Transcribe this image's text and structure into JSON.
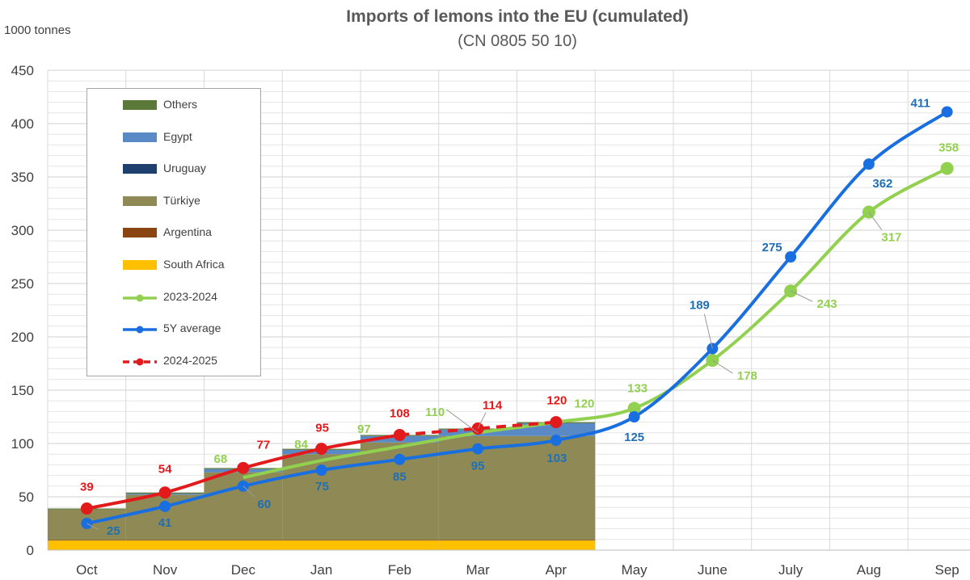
{
  "title": "Imports of lemons into the EU (cumulated)",
  "subtitle": "(CN 0805 50 10)",
  "unit_label": "1000 tonnes",
  "colors": {
    "others": "#5b7a3a",
    "egypt": "#5a8ac6",
    "uruguay": "#1f3f6e",
    "turkiye": "#8f8a55",
    "argentina": "#8b4513",
    "south_africa": "#ffc000",
    "y2023_2024": "#92d050",
    "avg5y": "#1a6fe0",
    "y2024_2025": "#e31a1c",
    "avg5y_label": "#1f6fb4",
    "grid": "#d9d9d9",
    "axis_text": "#404040"
  },
  "legend": [
    {
      "key": "others",
      "label": "Others",
      "kind": "bar"
    },
    {
      "key": "egypt",
      "label": "Egypt",
      "kind": "bar"
    },
    {
      "key": "uruguay",
      "label": "Uruguay",
      "kind": "bar"
    },
    {
      "key": "turkiye",
      "label": "Türkiye",
      "kind": "bar"
    },
    {
      "key": "argentina",
      "label": "Argentina",
      "kind": "bar"
    },
    {
      "key": "south_africa",
      "label": "South Africa",
      "kind": "bar"
    },
    {
      "key": "y2023_2024",
      "label": "2023-2024",
      "kind": "line"
    },
    {
      "key": "avg5y",
      "label": "5Y average",
      "kind": "line"
    },
    {
      "key": "y2024_2025",
      "label": "2024-2025",
      "kind": "dashline"
    }
  ],
  "chart_data": {
    "type": "bar",
    "title": "Imports of lemons into the EU (cumulated)",
    "subtitle": "(CN 0805 50 10)",
    "ylabel": "1000 tonnes",
    "xlabel": "",
    "ylim": [
      0,
      450
    ],
    "yticks": [
      0,
      50,
      100,
      150,
      200,
      250,
      300,
      350,
      400,
      450
    ],
    "grid": true,
    "categories": [
      "Oct",
      "Nov",
      "Dec",
      "Jan",
      "Feb",
      "Mar",
      "Apr",
      "May",
      "June",
      "July",
      "Aug",
      "Sep"
    ],
    "stacked_series": [
      {
        "key": "south_africa",
        "name": "South Africa",
        "values": [
          9,
          9,
          9,
          9,
          9,
          9,
          9
        ]
      },
      {
        "key": "argentina",
        "name": "Argentina",
        "values": [
          0.5,
          0.5,
          0.5,
          0.5,
          0.5,
          0.5,
          0.5
        ]
      },
      {
        "key": "turkiye",
        "name": "Türkiye",
        "values": [
          28.5,
          42.5,
          63.5,
          80.5,
          91.5,
          97.5,
          97.5
        ]
      },
      {
        "key": "uruguay",
        "name": "Uruguay",
        "values": [
          0,
          0,
          0,
          0,
          0,
          0,
          0
        ]
      },
      {
        "key": "egypt",
        "name": "Egypt",
        "values": [
          0,
          1,
          3,
          4,
          6,
          6,
          12
        ]
      },
      {
        "key": "others",
        "name": "Others",
        "values": [
          1,
          1,
          1,
          1,
          1,
          1,
          1
        ]
      }
    ],
    "line_series": [
      {
        "key": "y2023_2024",
        "name": "2023-2024",
        "values": [
          null,
          null,
          68,
          84,
          97,
          110,
          120,
          133,
          178,
          243,
          317,
          358
        ],
        "points": [
          null,
          null,
          null,
          null,
          null,
          null,
          null,
          133,
          178,
          243,
          317,
          358
        ],
        "labels": [
          "",
          "",
          "68",
          "84",
          "97",
          "110",
          "120",
          "133",
          "178",
          "243",
          "317",
          "358"
        ]
      },
      {
        "key": "avg5y",
        "name": "5Y average",
        "values": [
          25,
          41,
          60,
          75,
          85,
          95,
          103,
          125,
          189,
          275,
          362,
          411
        ],
        "labels": [
          "25",
          "41",
          "60",
          "75",
          "85",
          "95",
          "103",
          "125",
          "189",
          "275",
          "362",
          "411"
        ]
      },
      {
        "key": "y2024_2025",
        "name": "2024-2025",
        "values": [
          39,
          54,
          77,
          95,
          108,
          114,
          120,
          null,
          null,
          null,
          null,
          null
        ],
        "labels": [
          "39",
          "54",
          "77",
          "95",
          "108",
          "114",
          "120",
          "",
          "",
          "",
          "",
          ""
        ]
      }
    ]
  }
}
